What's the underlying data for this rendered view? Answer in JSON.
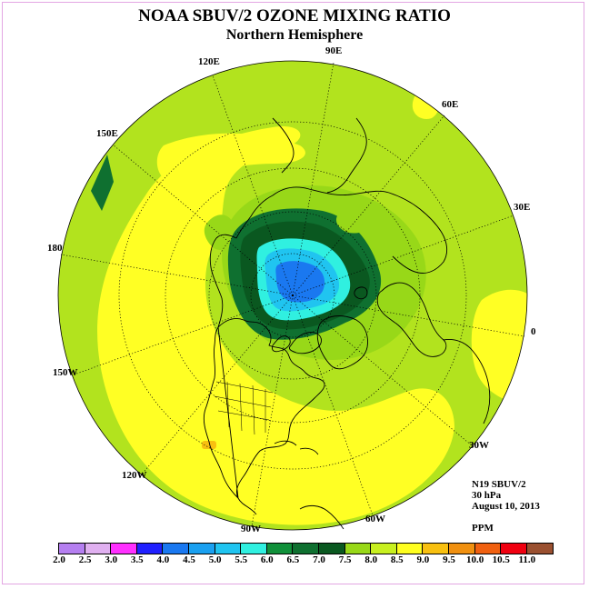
{
  "title": "NOAA SBUV/2 OZONE MIXING RATIO",
  "subtitle": "Northern Hemisphere",
  "longitude_labels": {
    "lon_90e": "90E",
    "lon_60e": "60E",
    "lon_30e": "30E",
    "lon_0": "0",
    "lon_30w": "30W",
    "lon_60w": "60W",
    "lon_90w": "90W",
    "lon_120w": "120W",
    "lon_150w": "150W",
    "lon_180": "180",
    "lon_150e": "150E",
    "lon_120e": "120E"
  },
  "info": {
    "instrument": "N19 SBUV/2",
    "level": "30 hPa",
    "date": "August 10, 2013",
    "units": "PPM"
  },
  "colorbar": {
    "labels": [
      "2.0",
      "2.5",
      "3.0",
      "3.5",
      "4.0",
      "4.5",
      "5.0",
      "5.5",
      "6.0",
      "6.5",
      "7.0",
      "7.5",
      "8.0",
      "8.5",
      "9.0",
      "9.5",
      "10.0",
      "10.5",
      "11.0"
    ],
    "colors": [
      "#b57ff0",
      "#e0b0f0",
      "#ff30ff",
      "#2020ff",
      "#1a78f0",
      "#1aa0f0",
      "#20c4f0",
      "#30f0e0",
      "#10903a",
      "#0f7030",
      "#0a5820",
      "#98d818",
      "#c8f020",
      "#ffff20",
      "#f8c010",
      "#f09010",
      "#f06010",
      "#f00010",
      "#9a5030"
    ]
  },
  "map_colors": {
    "background_field": "#b2e31e",
    "yellow_field": "#ffff24",
    "light_green": "#98d818",
    "green_6_5": "#0f7030",
    "green_7_0": "#0a5820",
    "cyan": "#30f0e0",
    "light_blue": "#20c4f0",
    "blue": "#1a78f0",
    "orange": "#f8c010"
  }
}
